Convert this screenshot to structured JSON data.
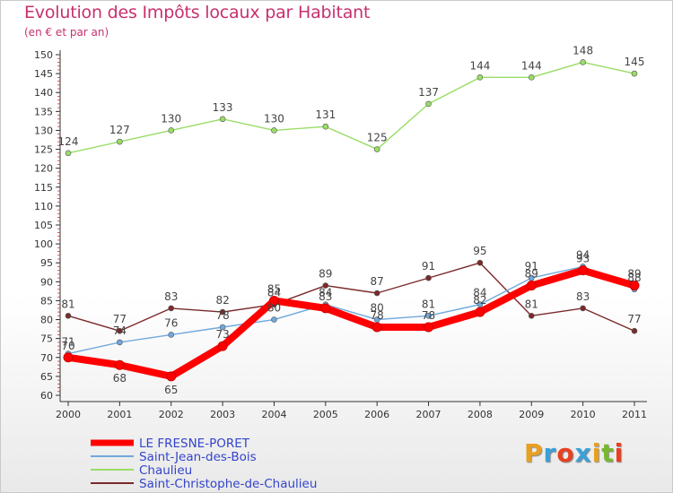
{
  "title": "Evolution des Impôts locaux par Habitant",
  "subtitle": "(en € et par an)",
  "logo": {
    "text": "Proxiti",
    "colors": [
      "#e8a020",
      "#3aa0d8",
      "#e84020",
      "#3aa0d8",
      "#e8a020",
      "#78b830",
      "#e84020"
    ]
  },
  "chart_data": {
    "type": "line",
    "x": [
      2000,
      2001,
      2002,
      2003,
      2004,
      2005,
      2006,
      2007,
      2008,
      2009,
      2010,
      2011
    ],
    "ylim": [
      60,
      150
    ],
    "yticks": [
      60,
      65,
      70,
      75,
      80,
      85,
      90,
      95,
      100,
      105,
      110,
      115,
      120,
      125,
      130,
      135,
      140,
      145,
      150
    ],
    "grid": false,
    "legend_position": "bottom-left",
    "series": [
      {
        "name": "LE FRESNE-PORET",
        "color": "#ff0000",
        "values": [
          70,
          68,
          65,
          73,
          85,
          83,
          78,
          78,
          82,
          89,
          93,
          89
        ]
      },
      {
        "name": "Saint-Jean-des-Bois",
        "color": "#6fa8dc",
        "values": [
          71,
          74,
          76,
          78,
          80,
          84,
          80,
          81,
          84,
          91,
          94,
          88
        ]
      },
      {
        "name": "Chaulieu",
        "color": "#99dd66",
        "values": [
          124,
          127,
          130,
          133,
          130,
          131,
          125,
          137,
          144,
          144,
          148,
          145
        ]
      },
      {
        "name": "Saint-Christophe-de-Chaulieu",
        "color": "#7b2a2a",
        "values": [
          81,
          77,
          83,
          82,
          84,
          89,
          87,
          91,
          95,
          81,
          83,
          77
        ]
      }
    ]
  }
}
